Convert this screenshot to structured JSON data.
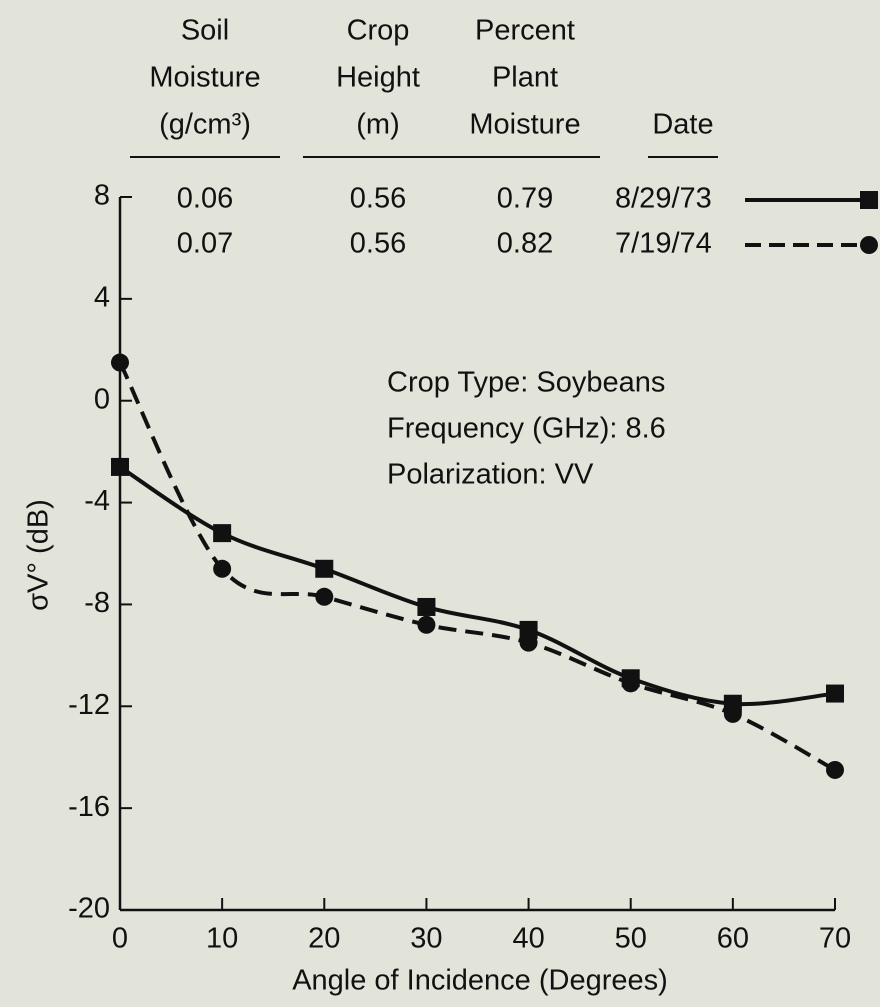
{
  "chart_data": {
    "type": "line",
    "table": {
      "headers": [
        [
          "Soil",
          "Moisture",
          "(g/cm³)"
        ],
        [
          "Crop",
          "Height",
          "(m)"
        ],
        [
          "Percent",
          "Plant",
          "Moisture"
        ],
        [
          "Date"
        ]
      ],
      "rows": [
        [
          "0.06",
          "0.56",
          "0.79",
          "8/29/73"
        ],
        [
          "0.07",
          "0.56",
          "0.82",
          "7/19/74"
        ]
      ]
    },
    "annotations": [
      "Crop Type:  Soybeans",
      "Frequency (GHz):  8.6",
      "Polarization:  VV"
    ],
    "x_label": "Angle of Incidence (Degrees)",
    "y_label": "σV° (dB)",
    "x": [
      0,
      10,
      20,
      30,
      40,
      50,
      60,
      70
    ],
    "series": [
      {
        "color": "#111111",
        "style": "solid",
        "marker": "square",
        "values": [
          -2.6,
          -5.2,
          -6.6,
          -8.1,
          -9.0,
          -10.9,
          -11.9,
          -11.5
        ]
      },
      {
        "color": "#111111",
        "style": "dashed",
        "marker": "circle",
        "values": [
          1.5,
          -6.6,
          -7.7,
          -8.8,
          -9.5,
          -11.1,
          -12.3,
          -14.5
        ]
      }
    ],
    "xlim": [
      0,
      70
    ],
    "xticks": [
      0,
      10,
      20,
      30,
      40,
      50,
      60,
      70
    ],
    "ylim": [
      -20,
      8
    ],
    "yticks": [
      -20,
      -16,
      -12,
      -8,
      -4,
      0,
      4,
      8
    ]
  }
}
